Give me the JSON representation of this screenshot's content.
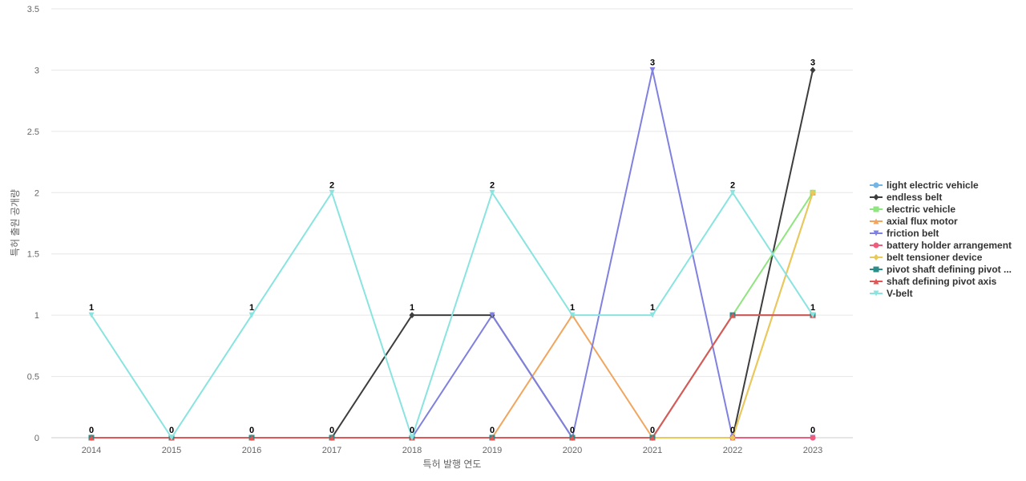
{
  "chart_data": {
    "type": "line",
    "title": "",
    "xlabel": "특허 발행 연도",
    "ylabel": "특허 출원 공개량",
    "x": [
      "2014",
      "2015",
      "2016",
      "2017",
      "2018",
      "2019",
      "2020",
      "2021",
      "2022",
      "2023"
    ],
    "ylim": [
      0,
      3.5
    ],
    "yticks": [
      "0",
      "0.5",
      "1",
      "1.5",
      "2",
      "2.5",
      "3",
      "3.5"
    ],
    "grid": true,
    "legend": "right",
    "series": [
      {
        "name": "light electric vehicle",
        "color": "#73b6e6",
        "marker": "circle",
        "values": [
          0,
          0,
          0,
          0,
          0,
          0,
          0,
          0,
          0,
          0
        ]
      },
      {
        "name": "endless belt",
        "color": "#3d3d3d",
        "marker": "diamond",
        "values": [
          0,
          0,
          0,
          0,
          1,
          1,
          0,
          0,
          0,
          3
        ]
      },
      {
        "name": "electric vehicle",
        "color": "#8fe57f",
        "marker": "square",
        "values": [
          0,
          0,
          0,
          0,
          0,
          0,
          0,
          0,
          1,
          2
        ]
      },
      {
        "name": "axial flux motor",
        "color": "#f1a65f",
        "marker": "triangle",
        "values": [
          0,
          0,
          0,
          0,
          0,
          0,
          1,
          0,
          0,
          2
        ]
      },
      {
        "name": "friction belt",
        "color": "#8080e0",
        "marker": "triangle-down",
        "values": [
          0,
          0,
          0,
          0,
          0,
          1,
          0,
          3,
          0,
          0
        ]
      },
      {
        "name": "battery holder arrangement",
        "color": "#ee5d7e",
        "marker": "circle",
        "values": [
          0,
          0,
          0,
          0,
          0,
          0,
          0,
          0,
          0,
          0
        ]
      },
      {
        "name": "belt tensioner device",
        "color": "#e8c95a",
        "marker": "diamond",
        "values": [
          0,
          0,
          0,
          0,
          0,
          0,
          0,
          0,
          0,
          2
        ]
      },
      {
        "name": "pivot shaft defining pivot ...",
        "color": "#2b8c88",
        "marker": "square",
        "values": [
          0,
          0,
          0,
          0,
          0,
          0,
          0,
          0,
          1,
          1
        ]
      },
      {
        "name": "shaft defining pivot axis",
        "color": "#e25656",
        "marker": "triangle",
        "values": [
          0,
          0,
          0,
          0,
          0,
          0,
          0,
          0,
          1,
          1
        ]
      },
      {
        "name": "V-belt",
        "color": "#89e4e0",
        "marker": "triangle-down",
        "values": [
          1,
          0,
          1,
          2,
          0,
          2,
          1,
          1,
          2,
          1
        ]
      }
    ],
    "data_labels": [
      "1",
      "0",
      "1",
      "2",
      "0",
      "2",
      "1",
      "1",
      "2",
      "1"
    ],
    "data_labels_max": [
      "1",
      "0",
      "1",
      "2",
      "1",
      "2",
      "1",
      "3",
      "2",
      "3"
    ]
  }
}
